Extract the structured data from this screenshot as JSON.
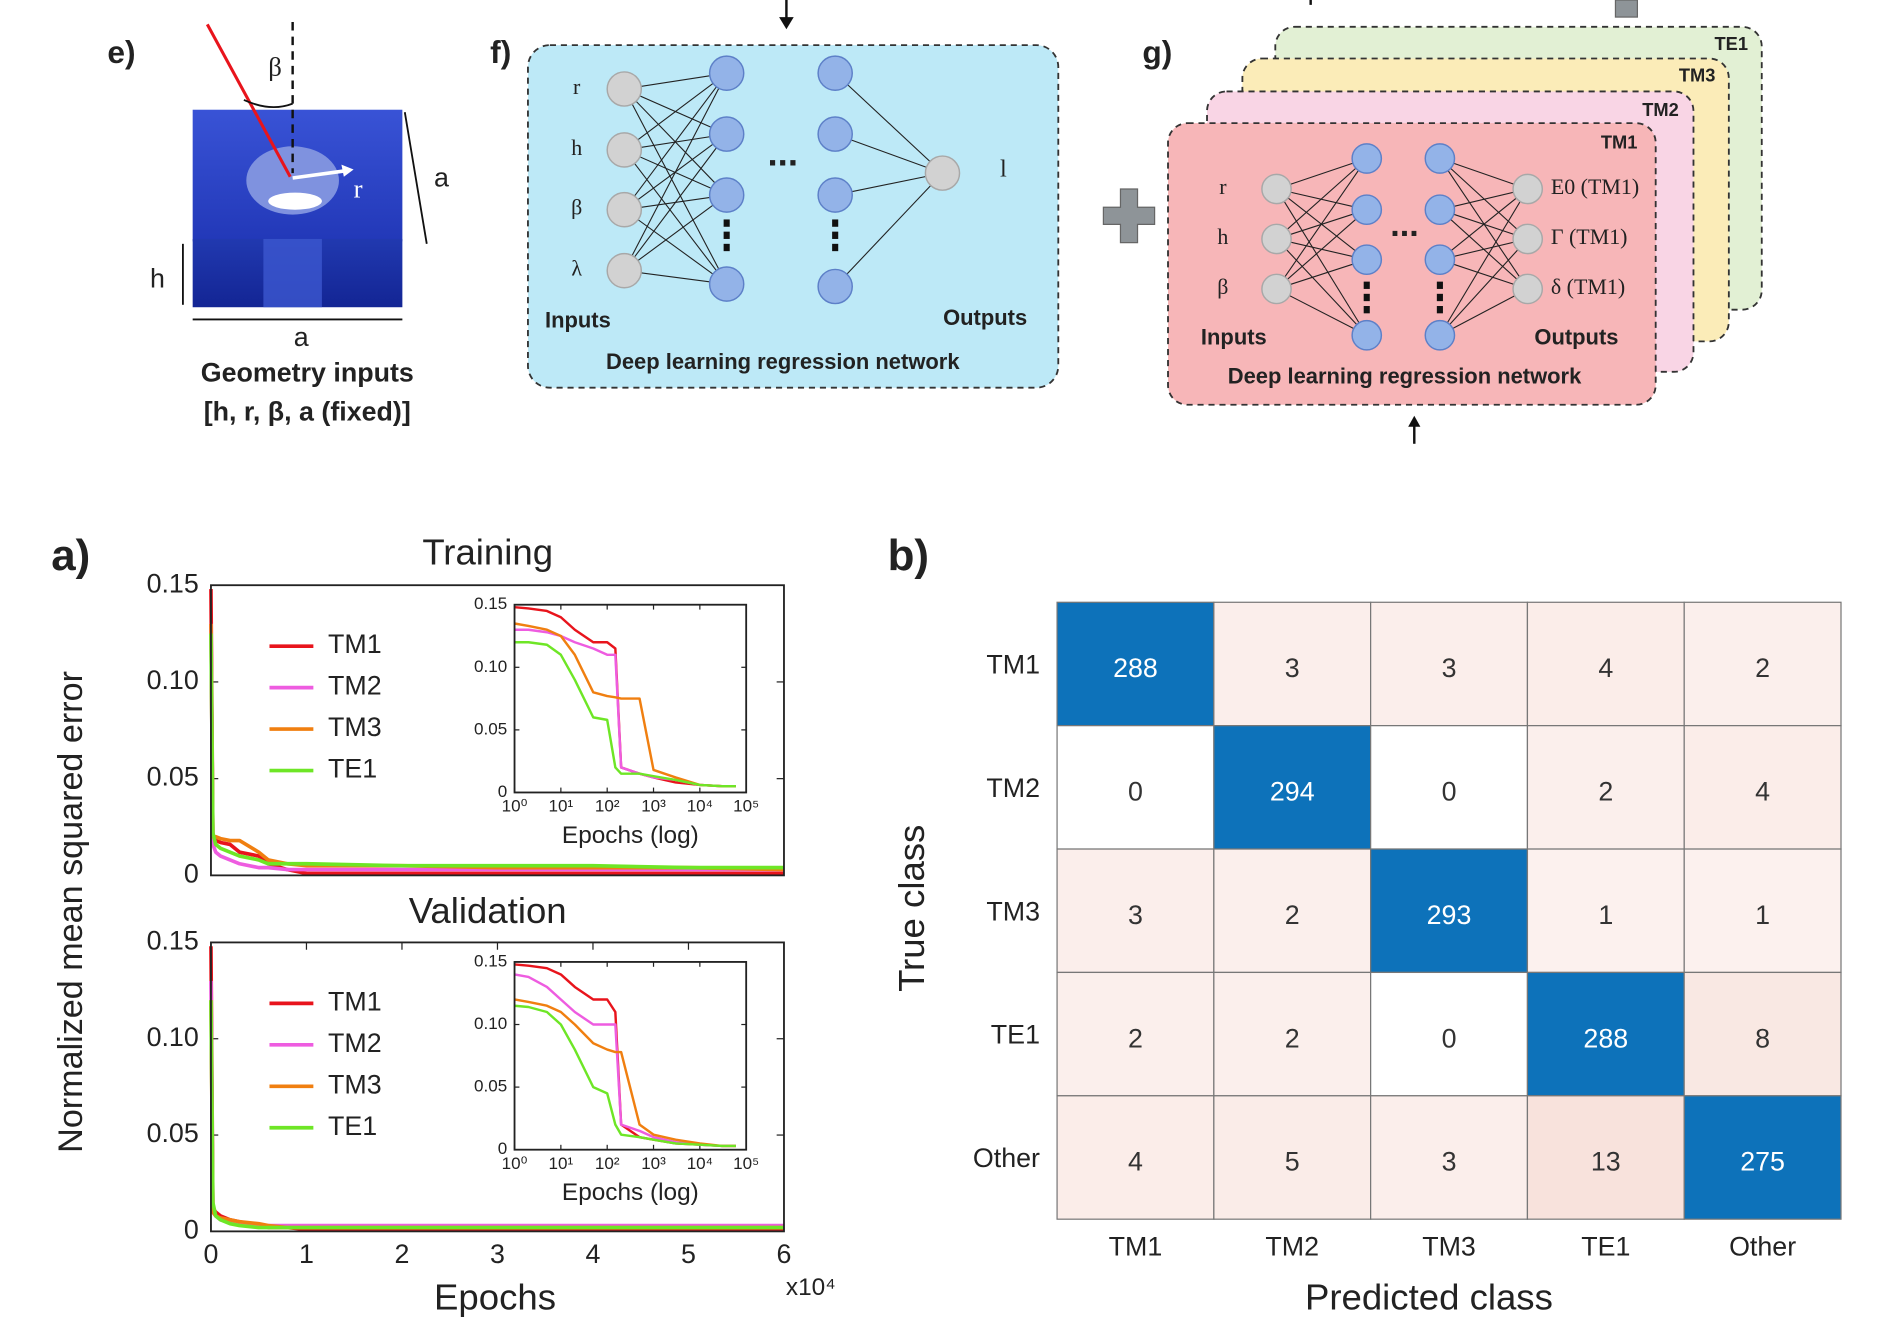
{
  "panels": {
    "e": {
      "label": "e)",
      "angle_symbol": "β",
      "radius_symbol": "r",
      "side_symbol": "a",
      "height_symbol": "h",
      "bottom_symbol": "a",
      "caption": [
        "Geometry inputs",
        "[h, r, β, a (fixed)]"
      ]
    },
    "f": {
      "label": "f)",
      "inputs": [
        "r",
        "h",
        "β",
        "λ"
      ],
      "output": "l",
      "inputs_title": "Inputs",
      "outputs_title": "Outputs",
      "network_title": "Deep learning regression network",
      "ellipsis": "..."
    },
    "g": {
      "label": "g)",
      "cards": [
        "TE1",
        "TM3",
        "TM2",
        "TM1"
      ],
      "inputs": [
        "r",
        "h",
        "β"
      ],
      "outputs": [
        "E0 (TM1)",
        "Γ (TM1)",
        "δ (TM1)"
      ],
      "inputs_title": "Inputs",
      "outputs_title": "Outputs",
      "network_title": "Deep learning regression network",
      "ellipsis": "..."
    }
  },
  "chart_data": [
    {
      "type": "line",
      "panel_label": "a)",
      "title": "Training",
      "ylabel": "Normalized mean squared error",
      "x": [
        0,
        0.02,
        0.05,
        0.1,
        0.2,
        0.3,
        0.5,
        0.6,
        0.8,
        1,
        2,
        3,
        4,
        5,
        6
      ],
      "xlim": [
        0,
        6
      ],
      "ylim": [
        0,
        0.15
      ],
      "yticks": [
        0,
        0.05,
        {
          "value": 0.1,
          "label": "0.10"
        },
        0.15
      ],
      "legend": "upper left",
      "series": [
        {
          "name": "TM1",
          "color": "#e8141c",
          "values": [
            0.148,
            0.02,
            0.018,
            0.017,
            0.016,
            0.012,
            0.01,
            0.006,
            0.003,
            0.001,
            0.001,
            0.001,
            0.001,
            0.001,
            0.001
          ]
        },
        {
          "name": "TM2",
          "color": "#ee5ce0",
          "values": [
            0.13,
            0.016,
            0.012,
            0.01,
            0.008,
            0.006,
            0.004,
            0.004,
            0.003,
            0.003,
            0.003,
            0.003,
            0.003,
            0.003,
            0.003
          ]
        },
        {
          "name": "TM3",
          "color": "#f07f10",
          "values": [
            0.13,
            0.02,
            0.02,
            0.019,
            0.018,
            0.018,
            0.012,
            0.008,
            0.006,
            0.005,
            0.005,
            0.004,
            0.004,
            0.004,
            0.003
          ]
        },
        {
          "name": "TE1",
          "color": "#6ee626",
          "values": [
            0.125,
            0.022,
            0.016,
            0.014,
            0.012,
            0.01,
            0.008,
            0.006,
            0.006,
            0.006,
            0.005,
            0.005,
            0.005,
            0.004,
            0.004
          ]
        }
      ]
    },
    {
      "type": "line",
      "title": "Validation",
      "xlabel": "Epochs",
      "x_multiplier": "x10⁴",
      "x": [
        0,
        0.02,
        0.05,
        0.1,
        0.2,
        0.3,
        0.5,
        0.6,
        0.8,
        1,
        2,
        3,
        4,
        5,
        6
      ],
      "xlim": [
        0,
        6
      ],
      "xticks": [
        0,
        1,
        2,
        3,
        4,
        5,
        6
      ],
      "ylim": [
        0,
        0.15
      ],
      "yticks": [
        0,
        0.05,
        {
          "value": 0.1,
          "label": "0.10"
        },
        0.15
      ],
      "legend": "upper left",
      "series": [
        {
          "name": "TM1",
          "color": "#e8141c",
          "values": [
            0.148,
            0.012,
            0.01,
            0.008,
            0.006,
            0.005,
            0.003,
            0.002,
            0.002,
            0.001,
            0.001,
            0.001,
            0.001,
            0.001,
            0.001
          ]
        },
        {
          "name": "TM2",
          "color": "#ee5ce0",
          "values": [
            0.13,
            0.01,
            0.008,
            0.006,
            0.005,
            0.004,
            0.003,
            0.003,
            0.003,
            0.003,
            0.003,
            0.003,
            0.003,
            0.003,
            0.003
          ]
        },
        {
          "name": "TM3",
          "color": "#f07f10",
          "values": [
            0.12,
            0.01,
            0.008,
            0.007,
            0.006,
            0.005,
            0.004,
            0.003,
            0.002,
            0.002,
            0.002,
            0.002,
            0.002,
            0.002,
            0.002
          ]
        },
        {
          "name": "TE1",
          "color": "#6ee626",
          "values": [
            0.12,
            0.015,
            0.008,
            0.006,
            0.004,
            0.003,
            0.002,
            0.002,
            0.002,
            0.002,
            0.002,
            0.002,
            0.002,
            0.002,
            0.002
          ]
        }
      ]
    },
    {
      "type": "line",
      "xscale": "log",
      "xlabel": "Epochs (log)",
      "x": [
        1,
        2,
        5,
        10,
        20,
        50,
        100,
        150,
        200,
        500,
        1000,
        3000,
        10000,
        30000,
        60000
      ],
      "xlim": [
        1,
        100000
      ],
      "xticks": [
        {
          "value": 1,
          "label": "10⁰"
        },
        {
          "value": 10,
          "label": "10¹"
        },
        {
          "value": 100,
          "label": "10²"
        },
        {
          "value": 1000,
          "label": "10³"
        },
        {
          "value": 10000,
          "label": "10⁴"
        },
        {
          "value": 100000,
          "label": "10⁵"
        }
      ],
      "ylim": [
        0,
        0.15
      ],
      "yticks": [
        0,
        0.05,
        {
          "value": 0.1,
          "label": "0.10"
        },
        0.15
      ],
      "series": [
        {
          "color": "#e8141c",
          "values": [
            0.148,
            0.147,
            0.145,
            0.14,
            0.13,
            0.12,
            0.12,
            0.115,
            0.02,
            0.015,
            0.012,
            0.008,
            0.006,
            0.005,
            0.005
          ]
        },
        {
          "color": "#ee5ce0",
          "values": [
            0.13,
            0.13,
            0.128,
            0.125,
            0.12,
            0.115,
            0.11,
            0.11,
            0.02,
            0.015,
            0.012,
            0.01,
            0.006,
            0.005,
            0.005
          ]
        },
        {
          "color": "#f07f10",
          "values": [
            0.135,
            0.133,
            0.13,
            0.125,
            0.11,
            0.08,
            0.077,
            0.076,
            0.075,
            0.075,
            0.018,
            0.012,
            0.006,
            0.005,
            0.005
          ]
        },
        {
          "color": "#6ee626",
          "values": [
            0.12,
            0.12,
            0.118,
            0.11,
            0.09,
            0.06,
            0.058,
            0.02,
            0.015,
            0.015,
            0.013,
            0.01,
            0.006,
            0.005,
            0.005
          ]
        }
      ]
    },
    {
      "type": "line",
      "xscale": "log",
      "xlabel": "Epochs (log)",
      "x": [
        1,
        2,
        5,
        10,
        20,
        50,
        100,
        150,
        200,
        500,
        1000,
        3000,
        10000,
        30000,
        60000
      ],
      "xlim": [
        1,
        100000
      ],
      "xticks": [
        {
          "value": 1,
          "label": "10⁰"
        },
        {
          "value": 10,
          "label": "10¹"
        },
        {
          "value": 100,
          "label": "10²"
        },
        {
          "value": 1000,
          "label": "10³"
        },
        {
          "value": 10000,
          "label": "10⁴"
        },
        {
          "value": 100000,
          "label": "10⁵"
        }
      ],
      "ylim": [
        0,
        0.15
      ],
      "yticks": [
        0,
        0.05,
        {
          "value": 0.1,
          "label": "0.10"
        },
        0.15
      ],
      "series": [
        {
          "color": "#e8141c",
          "values": [
            0.148,
            0.147,
            0.145,
            0.14,
            0.13,
            0.12,
            0.12,
            0.11,
            0.02,
            0.01,
            0.008,
            0.005,
            0.004,
            0.003,
            0.003
          ]
        },
        {
          "color": "#ee5ce0",
          "values": [
            0.14,
            0.138,
            0.13,
            0.12,
            0.11,
            0.1,
            0.1,
            0.1,
            0.02,
            0.015,
            0.01,
            0.006,
            0.004,
            0.003,
            0.003
          ]
        },
        {
          "color": "#f07f10",
          "values": [
            0.12,
            0.118,
            0.115,
            0.11,
            0.1,
            0.085,
            0.08,
            0.078,
            0.078,
            0.02,
            0.012,
            0.008,
            0.005,
            0.003,
            0.003
          ]
        },
        {
          "color": "#6ee626",
          "values": [
            0.115,
            0.114,
            0.11,
            0.1,
            0.08,
            0.05,
            0.045,
            0.02,
            0.012,
            0.01,
            0.008,
            0.005,
            0.004,
            0.003,
            0.003
          ]
        }
      ]
    },
    {
      "type": "heatmap",
      "panel_label": "b)",
      "xlabel": "Predicted class",
      "ylabel": "True class",
      "x_categories": [
        "TM1",
        "TM2",
        "TM3",
        "TE1",
        "Other"
      ],
      "y_categories": [
        "TM1",
        "TM2",
        "TM3",
        "TE1",
        "Other"
      ],
      "values": [
        [
          288,
          3,
          3,
          4,
          2
        ],
        [
          0,
          294,
          0,
          2,
          4
        ],
        [
          3,
          2,
          293,
          1,
          1
        ],
        [
          2,
          2,
          0,
          288,
          8
        ],
        [
          4,
          5,
          3,
          13,
          275
        ]
      ],
      "colors": {
        "low": "#ffffff",
        "mid": "#f8e2dc",
        "high": "#0d72ba"
      }
    }
  ]
}
